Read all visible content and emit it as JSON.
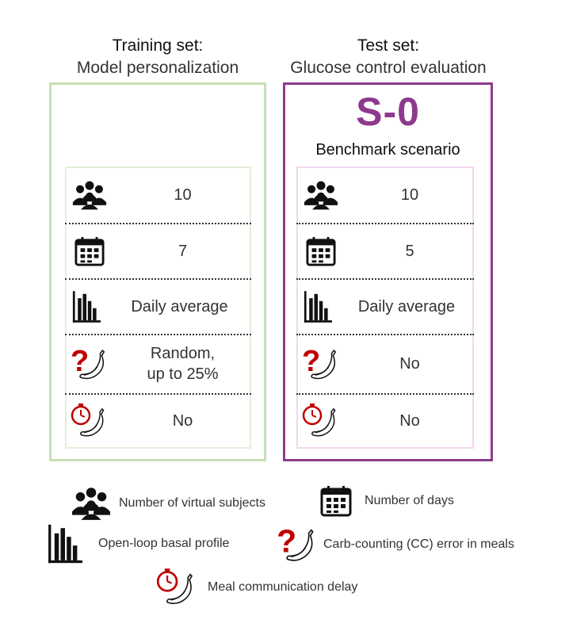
{
  "training": {
    "title": "Training set:",
    "subtitle": "Model personalization",
    "rows": [
      {
        "icon": "people-icon",
        "value": "10"
      },
      {
        "icon": "calendar-icon",
        "value": "7"
      },
      {
        "icon": "bar-chart-icon",
        "value": "Daily average"
      },
      {
        "icon": "question-banana-icon",
        "value_line1": "Random,",
        "value_line2": "up to 25%"
      },
      {
        "icon": "timer-banana-icon",
        "value": "No"
      }
    ]
  },
  "test": {
    "title": "Test set:",
    "subtitle": "Glucose control evaluation",
    "scenario": "S-0",
    "scenario_label": "Benchmark scenario",
    "rows": [
      {
        "icon": "people-icon",
        "value": "10"
      },
      {
        "icon": "calendar-icon",
        "value": "5"
      },
      {
        "icon": "bar-chart-icon",
        "value": "Daily average"
      },
      {
        "icon": "question-banana-icon",
        "value": "No"
      },
      {
        "icon": "timer-banana-icon",
        "value": "No"
      }
    ]
  },
  "legend": {
    "subjects": "Number of virtual subjects",
    "days": "Number of days",
    "basal": "Open-loop basal profile",
    "cc_error": "Carb-counting (CC) error in meals",
    "delay": "Meal communication delay"
  },
  "colors": {
    "training_border": "#c6e0b4",
    "test_border": "#8e3a8e",
    "accent_red": "#c00000"
  }
}
